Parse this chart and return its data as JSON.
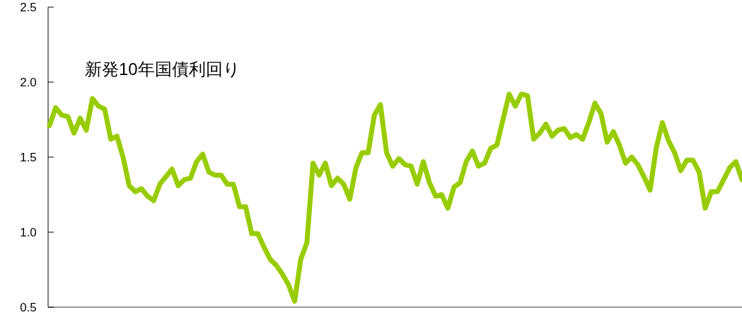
{
  "chart_data": {
    "type": "line",
    "title": "新発10年国債利回り",
    "categories": [
      null,
      null,
      null,
      null,
      null,
      null,
      null,
      null,
      null,
      null,
      null,
      null,
      null,
      null,
      null,
      null,
      null,
      null,
      null,
      null,
      null,
      null,
      null,
      null,
      null,
      null,
      null,
      null,
      null,
      null,
      null,
      null,
      null,
      null,
      null,
      null,
      null,
      null,
      null,
      null,
      null,
      null,
      null,
      null,
      null,
      null,
      null,
      null,
      null,
      null,
      null,
      null,
      null,
      null,
      null,
      null,
      null,
      null,
      null,
      null,
      null,
      null,
      null,
      null,
      null,
      null,
      null,
      null,
      null,
      null,
      null,
      null,
      null,
      null,
      null,
      null,
      null,
      null,
      null,
      null,
      null,
      null,
      null,
      null,
      null,
      null,
      null,
      null,
      null,
      null,
      null,
      null,
      null,
      null,
      null,
      null,
      null,
      null,
      null,
      null,
      null,
      null,
      null,
      null,
      null,
      null,
      null,
      null,
      null,
      null,
      null,
      null,
      null,
      null
    ],
    "series": [
      {
        "color": "#99cc00",
        "values": [
          1.71,
          1.83,
          1.78,
          1.77,
          1.66,
          1.76,
          1.68,
          1.89,
          1.84,
          1.82,
          1.62,
          1.64,
          1.5,
          1.31,
          1.27,
          1.29,
          1.24,
          1.21,
          1.32,
          1.37,
          1.42,
          1.31,
          1.35,
          1.36,
          1.47,
          1.52,
          1.4,
          1.38,
          1.38,
          1.32,
          1.32,
          1.17,
          1.17,
          0.99,
          0.99,
          0.9,
          0.82,
          0.78,
          0.72,
          0.65,
          0.54,
          0.82,
          0.93,
          1.46,
          1.38,
          1.46,
          1.31,
          1.36,
          1.32,
          1.22,
          1.43,
          1.53,
          1.53,
          1.78,
          1.85,
          1.53,
          1.44,
          1.49,
          1.45,
          1.44,
          1.32,
          1.47,
          1.33,
          1.24,
          1.25,
          1.16,
          1.3,
          1.33,
          1.47,
          1.54,
          1.44,
          1.46,
          1.56,
          1.58,
          1.75,
          1.92,
          1.84,
          1.92,
          1.91,
          1.62,
          1.66,
          1.72,
          1.64,
          1.68,
          1.69,
          1.63,
          1.65,
          1.62,
          1.73,
          1.86,
          1.79,
          1.6,
          1.67,
          1.58,
          1.46,
          1.5,
          1.45,
          1.37,
          1.28,
          1.56,
          1.73,
          1.61,
          1.53,
          1.41,
          1.48,
          1.48,
          1.4,
          1.16,
          1.27,
          1.27,
          1.35,
          1.43,
          1.47,
          1.35
        ]
      }
    ],
    "ylim": [
      0.5,
      2.5
    ],
    "yticks": [
      {
        "value": 0.5,
        "label": "0.5"
      },
      {
        "value": 1.0,
        "label": "1.0"
      },
      {
        "value": 1.5,
        "label": "1.5"
      },
      {
        "value": 2.0,
        "label": "2.0"
      },
      {
        "value": 2.5,
        "label": "2.5"
      }
    ],
    "tick_labels": "y",
    "grid": false,
    "marker": "none",
    "line_style": "solid"
  }
}
